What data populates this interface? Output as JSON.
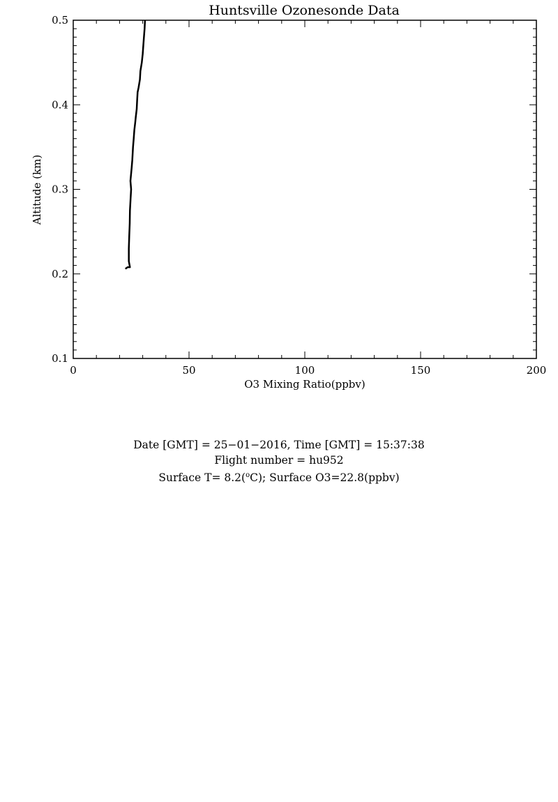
{
  "chart_data": {
    "type": "line",
    "title": "Huntsville Ozonesonde Data",
    "xlabel": "O3 Mixing Ratio(ppbv)",
    "ylabel": "Altitude (km)",
    "xlim": [
      0,
      200
    ],
    "ylim": [
      0.1,
      0.5
    ],
    "x_ticks": [
      "0",
      "50",
      "100",
      "150",
      "200"
    ],
    "y_ticks": [
      "0.1",
      "0.2",
      "0.3",
      "0.4",
      "0.5"
    ],
    "grid": false,
    "legend": "none",
    "line_color": "#000000",
    "series": [
      {
        "x": [
          22.5,
          23.5,
          24.5,
          24.0,
          24.0,
          24.2,
          24.4,
          24.5,
          24.8,
          25.0,
          24.7,
          25.2,
          25.5,
          25.8,
          26.1,
          26.4,
          26.8,
          27.0,
          27.4,
          27.6,
          27.8,
          28.2,
          28.8,
          29.0,
          29.6,
          30.0,
          30.4,
          30.8,
          31.0
        ],
        "y": [
          0.206,
          0.208,
          0.208,
          0.215,
          0.23,
          0.245,
          0.26,
          0.275,
          0.29,
          0.3,
          0.31,
          0.325,
          0.335,
          0.35,
          0.36,
          0.37,
          0.38,
          0.385,
          0.395,
          0.405,
          0.415,
          0.42,
          0.43,
          0.44,
          0.45,
          0.46,
          0.475,
          0.49,
          0.5
        ]
      }
    ]
  },
  "info": {
    "line1": "Date [GMT] = 25−01−2016,  Time [GMT] = 15:37:38",
    "line2": "Flight number = hu952",
    "line3_pre": "Surface T= 8.2(",
    "line3_sup": "o",
    "line3_post": "C); Surface O3=22.8(ppbv)"
  }
}
